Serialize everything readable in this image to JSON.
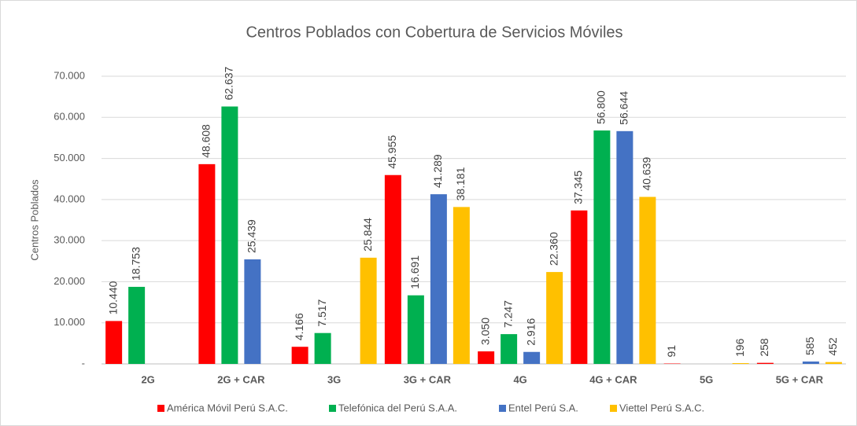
{
  "chart_data": {
    "type": "bar",
    "title": "Centros Poblados con Cobertura de Servicios Móviles",
    "y_label": "Centros Poblados",
    "categories": [
      "2G",
      "2G + CAR",
      "3G",
      "3G + CAR",
      "4G",
      "4G + CAR",
      "5G",
      "5G + CAR"
    ],
    "series": [
      {
        "name": "América Móvil Perú S.A.C.",
        "color": "#ff0000",
        "values": [
          10440,
          48608,
          4166,
          45955,
          3050,
          37345,
          91,
          258
        ],
        "value_labels": [
          "10.440",
          "48.608",
          "4.166",
          "45.955",
          "3.050",
          "37.345",
          "91",
          "258"
        ]
      },
      {
        "name": "Telefónica del Perú S.A.A.",
        "color": "#00b050",
        "values": [
          18753,
          62637,
          7517,
          16691,
          7247,
          56800,
          null,
          null
        ],
        "value_labels": [
          "18.753",
          "62.637",
          "7.517",
          "16.691",
          "7.247",
          "56.800",
          null,
          null
        ]
      },
      {
        "name": "Entel Perú S.A.",
        "color": "#4472c4",
        "values": [
          null,
          25439,
          null,
          41289,
          2916,
          56644,
          null,
          585
        ],
        "value_labels": [
          null,
          "25.439",
          null,
          "41.289",
          "2.916",
          "56.644",
          null,
          "585"
        ]
      },
      {
        "name": "Viettel Perú S.A.C.",
        "color": "#ffc000",
        "values": [
          null,
          null,
          25844,
          38181,
          22360,
          40639,
          196,
          452
        ],
        "value_labels": [
          null,
          null,
          "25.844",
          "38.181",
          "22.360",
          "40.639",
          "196",
          "452"
        ]
      }
    ],
    "ylim": [
      0,
      70000
    ],
    "yticks": [
      {
        "value": 0,
        "label": "-"
      },
      {
        "value": 10000,
        "label": "10.000"
      },
      {
        "value": 20000,
        "label": "20.000"
      },
      {
        "value": 30000,
        "label": "30.000"
      },
      {
        "value": 40000,
        "label": "40.000"
      },
      {
        "value": 50000,
        "label": "50.000"
      },
      {
        "value": 60000,
        "label": "60.000"
      },
      {
        "value": 70000,
        "label": "70.000"
      }
    ],
    "grid": true,
    "legend": "bottom"
  }
}
